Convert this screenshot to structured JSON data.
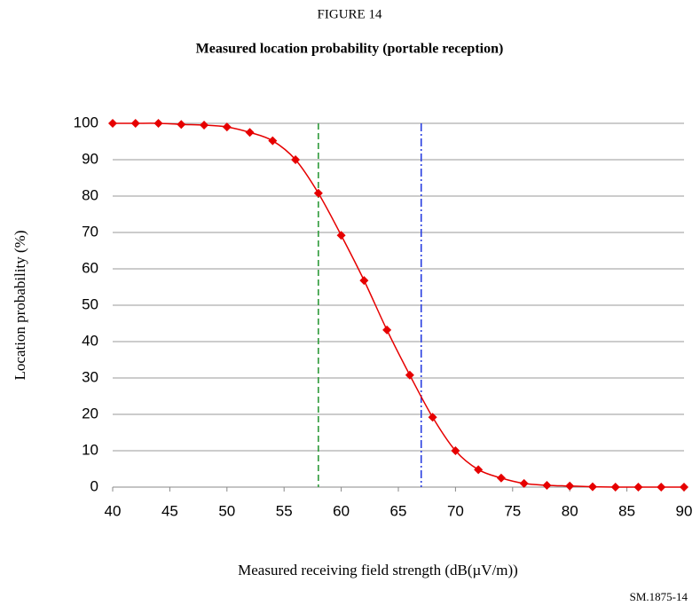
{
  "chart_data": {
    "type": "line",
    "figure_label": "FIGURE 14",
    "title": "Measured location probability (portable reception)",
    "xlabel": "Measured receiving field strength (dB(µV/m))",
    "ylabel": "Location probability (%)",
    "source": "SM.1875-14",
    "xlim": [
      40,
      90
    ],
    "xticks": [
      40,
      45,
      50,
      55,
      60,
      65,
      70,
      75,
      80,
      85,
      90
    ],
    "ylim": [
      0,
      100
    ],
    "yticks": [
      0,
      10,
      20,
      30,
      40,
      50,
      60,
      70,
      80,
      90,
      100
    ],
    "grid": true,
    "x": [
      40,
      42,
      44,
      46,
      48,
      50,
      52,
      54,
      56,
      58,
      60,
      62,
      64,
      66,
      68,
      70,
      72,
      74,
      76,
      78,
      80,
      82,
      84,
      86,
      88,
      90
    ],
    "series": [
      {
        "color": "#e60000",
        "values": [
          100,
          100,
          100,
          99.7,
          99.5,
          99,
          97.5,
          95.2,
          90,
          80.8,
          69.2,
          56.8,
          43.2,
          30.8,
          19.2,
          10,
          4.8,
          2.5,
          1,
          0.5,
          0.3,
          0.1,
          0,
          0,
          0,
          0
        ]
      }
    ],
    "vlines": [
      {
        "x": 58,
        "color": "#2e9a3a",
        "style": "dashed"
      },
      {
        "x": 67,
        "color": "#2a3fe0",
        "style": "dashdot"
      }
    ]
  }
}
